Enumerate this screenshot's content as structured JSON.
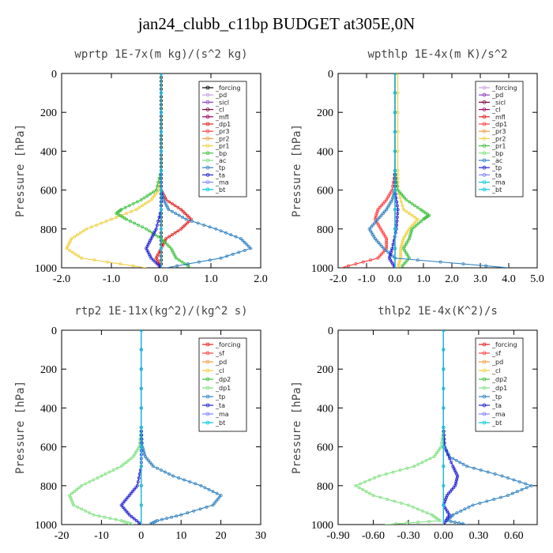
{
  "title": "jan24_clubb_c11bp  BUDGET at305E,0N",
  "chart_data": [
    {
      "type": "line",
      "title": "wprtp  1E-7x(m kg)/(s^2 kg)",
      "ylabel": "Pressure [hPa]",
      "xlim": [
        -2.0,
        2.0
      ],
      "ylim": [
        1000,
        0
      ],
      "xticks": [
        "-2.0",
        "-1.0",
        "0.0",
        "1.0",
        "2.0"
      ],
      "yticks": [
        "0",
        "200",
        "400",
        "600",
        "800",
        "1000"
      ],
      "legend_position": "top-right",
      "series": [
        {
          "name": "_forcing",
          "color": "#000000",
          "y": [
            0,
            100,
            200,
            300,
            400,
            500,
            600,
            700,
            800,
            900,
            1000
          ],
          "x": [
            0,
            0,
            0,
            0,
            0,
            0,
            0,
            0,
            0,
            0,
            0
          ]
        },
        {
          "name": "_pd",
          "color": "#c8a0e0",
          "y": [
            0,
            500,
            1000
          ],
          "x": [
            0,
            0,
            0
          ]
        },
        {
          "name": "_sicl",
          "color": "#9040c0",
          "y": [
            0,
            500,
            1000
          ],
          "x": [
            0,
            0,
            0
          ]
        },
        {
          "name": "_cl",
          "color": "#800040",
          "y": [
            0,
            500,
            1000
          ],
          "x": [
            0,
            0,
            0
          ]
        },
        {
          "name": "_mfl",
          "color": "#a00060",
          "y": [
            0,
            500,
            1000
          ],
          "x": [
            0,
            0,
            0
          ]
        },
        {
          "name": "_dp1",
          "color": "#e02020",
          "y": [
            0,
            500,
            600,
            650,
            700,
            750,
            800,
            850,
            900,
            950,
            1000
          ],
          "x": [
            0,
            0,
            0,
            0.1,
            0.4,
            0.6,
            0.4,
            0.1,
            0,
            -0.1,
            0
          ]
        },
        {
          "name": "_pr3",
          "color": "#ff4040",
          "y": [
            0,
            500,
            1000
          ],
          "x": [
            0,
            0,
            0
          ]
        },
        {
          "name": "_pr2",
          "color": "#f0a040",
          "y": [
            0,
            500,
            1000
          ],
          "x": [
            0,
            0,
            0
          ]
        },
        {
          "name": "_pr1",
          "color": "#f0d040",
          "y": [
            0,
            500,
            600,
            650,
            700,
            750,
            800,
            850,
            900,
            950,
            1000
          ],
          "x": [
            0,
            0,
            -0.05,
            -0.2,
            -0.5,
            -1.0,
            -1.5,
            -1.8,
            -1.9,
            -1.6,
            -0.3
          ]
        },
        {
          "name": "_bp",
          "color": "#40c040",
          "y": [
            0,
            500,
            600,
            650,
            700,
            720,
            750,
            800,
            850,
            900,
            950,
            1000
          ],
          "x": [
            0,
            0,
            -0.1,
            -0.4,
            -0.8,
            -0.9,
            -0.7,
            -0.3,
            0,
            0.2,
            0.3,
            0.6
          ]
        },
        {
          "name": "_ac",
          "color": "#80e080",
          "y": [
            0,
            500,
            1000
          ],
          "x": [
            0,
            0,
            0
          ]
        },
        {
          "name": "_tp",
          "color": "#3080c0",
          "y": [
            0,
            500,
            600,
            650,
            700,
            750,
            800,
            850,
            900,
            950,
            1000
          ],
          "x": [
            0,
            0,
            0,
            0.05,
            0.15,
            0.5,
            1.1,
            1.6,
            1.8,
            1.2,
            0.1
          ]
        },
        {
          "name": "_ta",
          "color": "#2020d0",
          "y": [
            0,
            500,
            600,
            700,
            800,
            850,
            900,
            950,
            1000
          ],
          "x": [
            0,
            0,
            0,
            0,
            -0.1,
            -0.2,
            -0.3,
            -0.2,
            0
          ]
        },
        {
          "name": "_ma",
          "color": "#8080ff",
          "y": [
            0,
            500,
            1000
          ],
          "x": [
            0,
            0,
            0
          ]
        },
        {
          "name": "_bt",
          "color": "#00c8e0",
          "y": [
            0,
            500,
            1000
          ],
          "x": [
            0,
            0,
            0
          ]
        }
      ]
    },
    {
      "type": "line",
      "title": "wpthlp  1E-4x(m K)/s^2",
      "ylabel": "Pressure [hPa]",
      "xlim": [
        -2.0,
        5.0
      ],
      "ylim": [
        1000,
        0
      ],
      "xticks": [
        "-2.0",
        "-1.0",
        "0.0",
        "1.0",
        "2.0",
        "3.0",
        "4.0",
        "5.0"
      ],
      "yticks": [
        "0",
        "200",
        "400",
        "600",
        "800",
        "1000"
      ],
      "legend_position": "top-right",
      "series": [
        {
          "name": "_forcing",
          "color": "#c8a0e0",
          "y": [
            0,
            500,
            1000
          ],
          "x": [
            0,
            0,
            0
          ]
        },
        {
          "name": "_pd",
          "color": "#9040c0",
          "y": [
            0,
            500,
            1000
          ],
          "x": [
            0,
            0,
            0
          ]
        },
        {
          "name": "_sicl",
          "color": "#800040",
          "y": [
            0,
            500,
            1000
          ],
          "x": [
            0,
            0,
            0
          ]
        },
        {
          "name": "_cl",
          "color": "#a00060",
          "y": [
            0,
            500,
            1000
          ],
          "x": [
            0,
            0,
            0
          ]
        },
        {
          "name": "_mfl",
          "color": "#e02020",
          "y": [
            0,
            500,
            1000
          ],
          "x": [
            0,
            0,
            0
          ]
        },
        {
          "name": "_dp1",
          "color": "#ff4040",
          "y": [
            0,
            500,
            600,
            650,
            700,
            750,
            800,
            850,
            900,
            950,
            1000
          ],
          "x": [
            0,
            0,
            -0.1,
            -0.3,
            -0.6,
            -0.7,
            -0.5,
            -0.3,
            -0.3,
            -0.6,
            -1.9
          ]
        },
        {
          "name": "_pr3",
          "color": "#f0a040",
          "y": [
            0,
            500,
            1000
          ],
          "x": [
            0,
            0,
            0
          ]
        },
        {
          "name": "_pr2",
          "color": "#f0d040",
          "y": [
            0,
            500,
            600,
            700,
            750,
            800,
            850,
            900,
            950,
            1000
          ],
          "x": [
            0.1,
            0.1,
            0.1,
            0.3,
            0.8,
            0.5,
            0.3,
            0.2,
            0.2,
            0.1
          ]
        },
        {
          "name": "_pr1",
          "color": "#40c040",
          "y": [
            0,
            500,
            600,
            650,
            700,
            730,
            750,
            800,
            850,
            900,
            950,
            1000
          ],
          "x": [
            0,
            0,
            0.1,
            0.4,
            0.9,
            1.2,
            1.0,
            0.6,
            0.5,
            0.3,
            0.5,
            0.2
          ]
        },
        {
          "name": "_bp",
          "color": "#80e080",
          "y": [
            0,
            500,
            1000
          ],
          "x": [
            0,
            0,
            0
          ]
        },
        {
          "name": "_ac",
          "color": "#3080c0",
          "y": [
            0,
            500,
            600,
            650,
            700,
            750,
            800,
            850,
            900,
            950,
            1000
          ],
          "x": [
            0,
            0,
            0,
            -0.1,
            -0.3,
            -0.6,
            -0.9,
            -0.7,
            -0.4,
            0,
            4.0
          ]
        },
        {
          "name": "_tp",
          "color": "#2020d0",
          "y": [
            0,
            500,
            600,
            700,
            800,
            900,
            950,
            1000
          ],
          "x": [
            0,
            0,
            0,
            0.1,
            0.05,
            -0.1,
            -0.2,
            0
          ]
        },
        {
          "name": "_ta",
          "color": "#8080ff",
          "y": [
            0,
            500,
            1000
          ],
          "x": [
            0,
            0,
            0
          ]
        },
        {
          "name": "_ma",
          "color": "#00c8e0",
          "y": [
            0,
            500,
            1000
          ],
          "x": [
            0,
            0,
            0
          ]
        },
        {
          "name": "_bt",
          "color": "#00c8e0",
          "y": [
            0,
            500,
            1000
          ],
          "x": [
            0,
            0,
            0
          ]
        }
      ]
    },
    {
      "type": "line",
      "title": "rtp2  1E-11x(kg^2)/(kg^2 s)",
      "ylabel": "Pressure [hPa]",
      "xlim": [
        -20,
        30
      ],
      "ylim": [
        1000,
        0
      ],
      "xticks": [
        "-20",
        "-10",
        "0",
        "10",
        "20",
        "30"
      ],
      "yticks": [
        "0",
        "200",
        "400",
        "600",
        "800",
        "1000"
      ],
      "legend_position": "top-right",
      "series": [
        {
          "name": "_forcing",
          "color": "#e02020",
          "y": [
            0,
            500,
            1000
          ],
          "x": [
            0,
            0,
            0
          ]
        },
        {
          "name": "_sf",
          "color": "#ff4040",
          "y": [
            0,
            500,
            1000
          ],
          "x": [
            0,
            0,
            0
          ]
        },
        {
          "name": "_pd",
          "color": "#f0a040",
          "y": [
            0,
            500,
            1000
          ],
          "x": [
            0,
            0,
            0
          ]
        },
        {
          "name": "_cl",
          "color": "#f0d040",
          "y": [
            0,
            500,
            1000
          ],
          "x": [
            0,
            0,
            0
          ]
        },
        {
          "name": "_dp2",
          "color": "#40c040",
          "y": [
            0,
            500,
            1000
          ],
          "x": [
            0,
            0,
            0
          ]
        },
        {
          "name": "_dp1",
          "color": "#80e080",
          "y": [
            0,
            500,
            600,
            650,
            700,
            750,
            800,
            850,
            900,
            950,
            980,
            1000
          ],
          "x": [
            0,
            0,
            -0.5,
            -2,
            -5,
            -10,
            -15,
            -18,
            -17,
            -12,
            -5,
            -2
          ]
        },
        {
          "name": "_tp",
          "color": "#3080c0",
          "y": [
            0,
            500,
            600,
            650,
            700,
            750,
            800,
            850,
            900,
            950,
            980,
            1000
          ],
          "x": [
            0,
            0,
            0.3,
            1,
            3,
            8,
            15,
            20,
            18,
            10,
            4,
            2
          ]
        },
        {
          "name": "_ta",
          "color": "#2020d0",
          "y": [
            0,
            500,
            600,
            700,
            800,
            850,
            900,
            950,
            1000
          ],
          "x": [
            0,
            0,
            0,
            0,
            -1,
            -3,
            -5,
            -3,
            0
          ]
        },
        {
          "name": "_ma",
          "color": "#8080ff",
          "y": [
            0,
            500,
            1000
          ],
          "x": [
            0,
            0,
            0
          ]
        },
        {
          "name": "_bt",
          "color": "#00c8e0",
          "y": [
            0,
            500,
            1000
          ],
          "x": [
            0,
            0,
            0
          ]
        }
      ]
    },
    {
      "type": "line",
      "title": "thlp2  1E-4x(K^2)/s",
      "ylabel": "Pressure [hPa]",
      "xlim": [
        -0.9,
        0.8
      ],
      "ylim": [
        1000,
        0
      ],
      "xticks": [
        "-0.90",
        "-0.60",
        "-0.30",
        "0.00",
        "0.30",
        "0.60"
      ],
      "yticks": [
        "0",
        "200",
        "400",
        "600",
        "800",
        "1000"
      ],
      "legend_position": "top-right",
      "series": [
        {
          "name": "_forcing",
          "color": "#e02020",
          "y": [
            0,
            500,
            1000
          ],
          "x": [
            0,
            0,
            0
          ]
        },
        {
          "name": "_sf",
          "color": "#ff4040",
          "y": [
            0,
            500,
            1000
          ],
          "x": [
            0,
            0,
            0
          ]
        },
        {
          "name": "_pd",
          "color": "#f0a040",
          "y": [
            0,
            500,
            1000
          ],
          "x": [
            0,
            0,
            0
          ]
        },
        {
          "name": "_cl",
          "color": "#f0d040",
          "y": [
            0,
            500,
            1000
          ],
          "x": [
            0,
            0,
            0
          ]
        },
        {
          "name": "_dp2",
          "color": "#40c040",
          "y": [
            0,
            500,
            1000
          ],
          "x": [
            0,
            0,
            0
          ]
        },
        {
          "name": "_dp1",
          "color": "#80e080",
          "y": [
            0,
            500,
            600,
            650,
            700,
            750,
            800,
            850,
            900,
            950,
            980,
            1000
          ],
          "x": [
            0,
            0,
            -0.02,
            -0.08,
            -0.25,
            -0.55,
            -0.75,
            -0.6,
            -0.3,
            -0.1,
            -0.03,
            -0.5
          ]
        },
        {
          "name": "_tp",
          "color": "#3080c0",
          "y": [
            0,
            500,
            600,
            650,
            700,
            750,
            800,
            850,
            900,
            950,
            980,
            1000
          ],
          "x": [
            0,
            0,
            0.01,
            0.05,
            0.2,
            0.5,
            0.75,
            0.55,
            0.25,
            0.08,
            0.03,
            0.2
          ]
        },
        {
          "name": "_ta",
          "color": "#2020d0",
          "y": [
            0,
            500,
            600,
            700,
            750,
            800,
            850,
            900,
            950,
            1000
          ],
          "x": [
            0,
            0,
            0.01,
            0.08,
            0.12,
            0.1,
            0.03,
            0,
            0.05,
            0
          ]
        },
        {
          "name": "_ma",
          "color": "#8080ff",
          "y": [
            0,
            500,
            1000
          ],
          "x": [
            0,
            0,
            0
          ]
        },
        {
          "name": "_bt",
          "color": "#00c8e0",
          "y": [
            0,
            500,
            1000
          ],
          "x": [
            0,
            0,
            0
          ]
        }
      ]
    }
  ]
}
